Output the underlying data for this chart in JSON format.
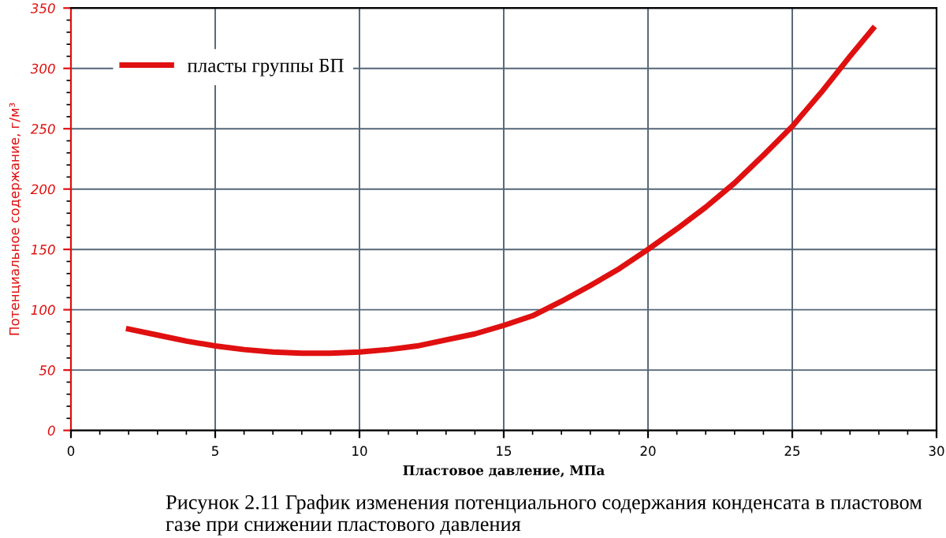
{
  "chart_data": {
    "type": "line",
    "xlabel": "Пластовое давление, МПа",
    "ylabel": "Потенциальное содержание, г/м³",
    "annotations": [
      "Рисунок 2.11 График изменения потенциального содержания конденсата в пластовом газе при снижении пластового давления"
    ],
    "x": [
      2,
      3,
      4,
      5,
      6,
      7,
      8,
      9,
      10,
      11,
      12,
      13,
      14,
      15,
      16,
      17,
      18,
      19,
      20,
      21,
      22,
      23,
      24,
      25,
      26,
      27,
      27.8
    ],
    "series": [
      {
        "name": "пласты группы БП",
        "color": "#e01010",
        "values": [
          84,
          79,
          74,
          70,
          67,
          65,
          64,
          64,
          65,
          67,
          70,
          75,
          80,
          87,
          95,
          107,
          120,
          134,
          150,
          167,
          185,
          205,
          228,
          252,
          280,
          310,
          333
        ]
      }
    ],
    "xlim": [
      0,
      30
    ],
    "xticks": [
      0,
      5,
      10,
      15,
      20,
      25,
      30
    ],
    "ylim": [
      0,
      350
    ],
    "yticks": [
      0,
      50,
      100,
      150,
      200,
      250,
      300,
      350
    ],
    "grid": true,
    "legend": "top left",
    "marker": "none",
    "line_style": "solid"
  }
}
